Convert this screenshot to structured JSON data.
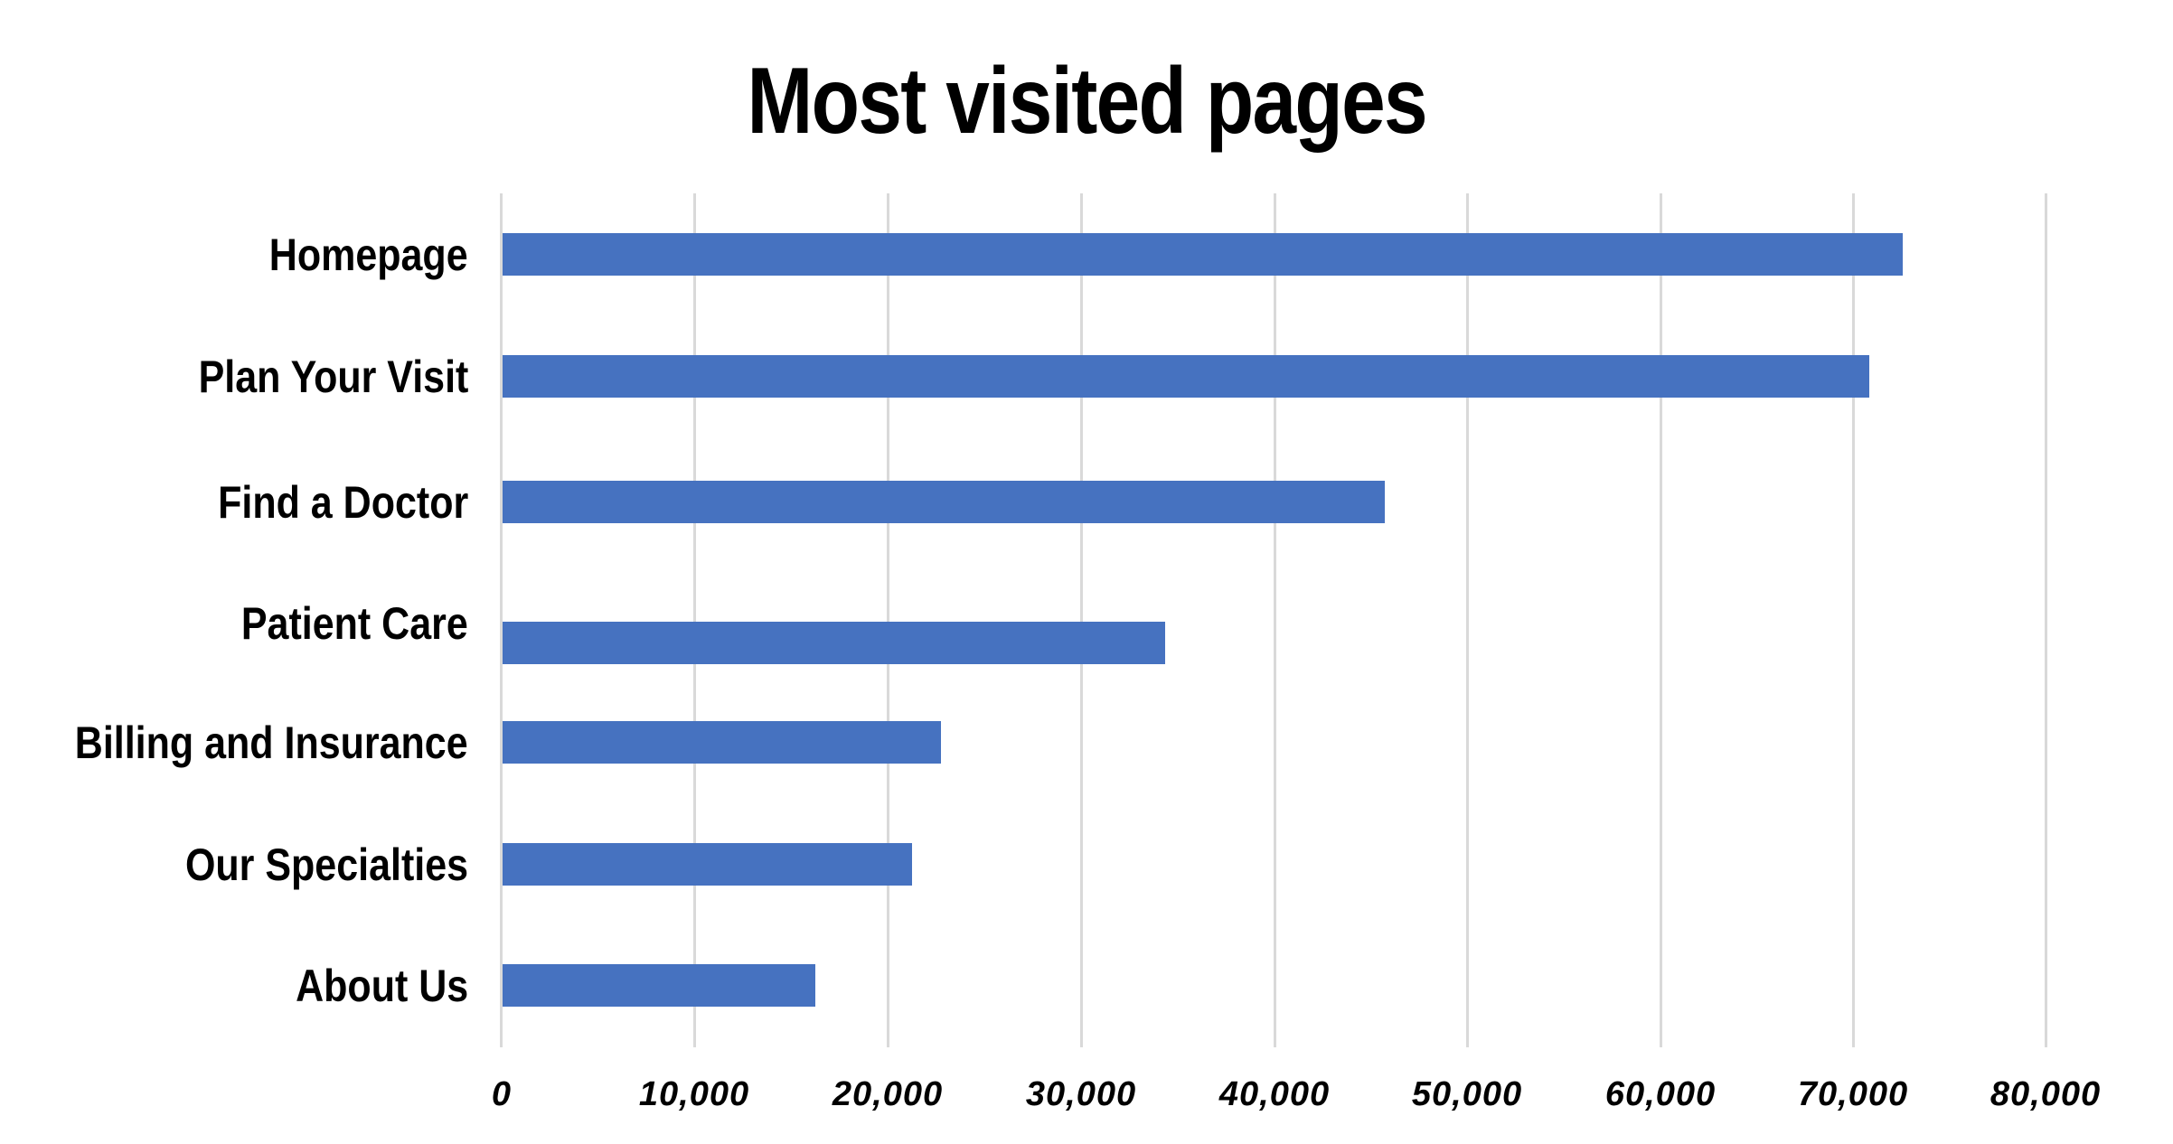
{
  "chart_data": {
    "type": "bar",
    "orientation": "horizontal",
    "title": "Most visited pages",
    "xlabel": "",
    "ylabel": "",
    "categories": [
      "Homepage",
      "Plan Your Visit",
      "Find a Doctor",
      "Patient Care",
      "Billing and Insurance",
      "Our Specialties",
      "About Us"
    ],
    "values": [
      72500,
      70800,
      45700,
      34300,
      22700,
      21200,
      16200
    ],
    "xlim": [
      0,
      80000
    ],
    "x_ticks": [
      "0",
      "10,000",
      "20,000",
      "30,000",
      "40,000",
      "50,000",
      "60,000",
      "70,000",
      "80,000"
    ],
    "grid": "vertical",
    "legend": "none",
    "bar_color": "#4672C0",
    "grid_color": "#D9D9D9"
  }
}
